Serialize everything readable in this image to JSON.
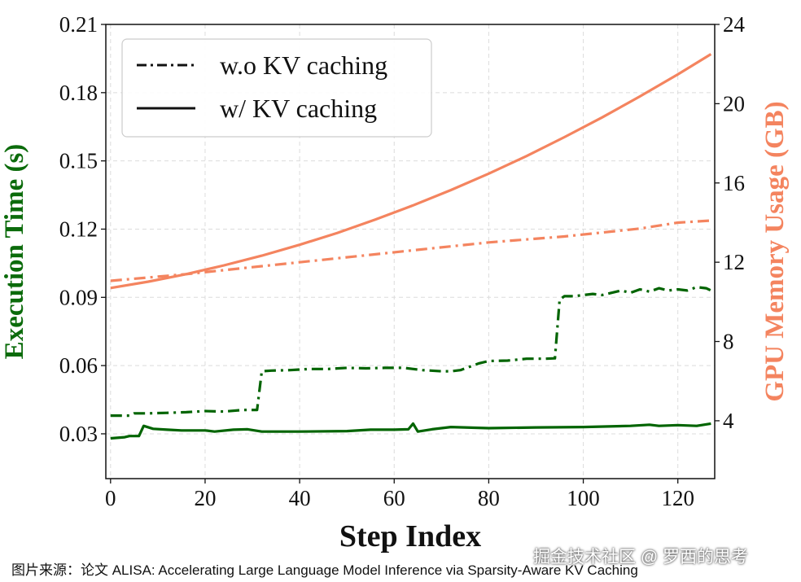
{
  "chart_data": {
    "type": "line",
    "xlabel": "Step Index",
    "ylabel_left": "Execution Time (s)",
    "ylabel_right": "GPU Memory Usage (GB)",
    "xlim": [
      -1,
      127.8
    ],
    "ylim_left": [
      0.0103,
      0.21
    ],
    "ylim_right": [
      1.08,
      24
    ],
    "xticks": [
      "0",
      "20",
      "40",
      "60",
      "80",
      "100",
      "120"
    ],
    "xtick_values": [
      0,
      20,
      40,
      60,
      80,
      100,
      120
    ],
    "yticks_left": [
      "0.03",
      "0.06",
      "0.09",
      "0.12",
      "0.15",
      "0.18",
      "0.21"
    ],
    "ytick_values_left": [
      0.03,
      0.06,
      0.09,
      0.12,
      0.15,
      0.18,
      0.21
    ],
    "yticks_right": [
      "4",
      "8",
      "12",
      "16",
      "20",
      "24"
    ],
    "ytick_values_right": [
      4,
      8,
      12,
      16,
      20,
      24
    ],
    "grid": true,
    "legend": {
      "placement": "top-left",
      "entries": [
        "w.o KV caching",
        "w/ KV caching"
      ]
    },
    "colors": {
      "time": "#006400",
      "memory": "#f4845f",
      "axis_left": "#0b6b0b",
      "axis_right": "#f4845f"
    },
    "series": [
      {
        "name": "Execution Time w.o KV caching",
        "axis": "left",
        "style": "dashdot",
        "color": "#006400",
        "x": [
          0,
          2,
          4,
          5,
          8,
          12,
          16,
          20,
          24,
          28,
          31,
          32,
          34,
          38,
          42,
          46,
          50,
          54,
          58,
          62,
          64,
          66,
          70,
          72,
          74,
          76,
          78,
          80,
          84,
          88,
          92,
          94,
          95,
          96,
          98,
          100,
          102,
          104,
          106,
          108,
          110,
          112,
          114,
          116,
          118,
          120,
          122,
          124,
          126,
          127
        ],
        "values": [
          0.038,
          0.038,
          0.038,
          0.039,
          0.039,
          0.0392,
          0.0395,
          0.04,
          0.0398,
          0.0405,
          0.0405,
          0.0575,
          0.0578,
          0.058,
          0.0585,
          0.0585,
          0.059,
          0.0588,
          0.059,
          0.059,
          0.0585,
          0.058,
          0.0575,
          0.0575,
          0.058,
          0.0595,
          0.061,
          0.062,
          0.0622,
          0.063,
          0.063,
          0.0632,
          0.089,
          0.0905,
          0.0905,
          0.091,
          0.0915,
          0.091,
          0.092,
          0.093,
          0.092,
          0.0935,
          0.0925,
          0.094,
          0.093,
          0.0935,
          0.093,
          0.0945,
          0.094,
          0.093
        ]
      },
      {
        "name": "Execution Time w/ KV caching",
        "axis": "left",
        "style": "solid",
        "color": "#006400",
        "x": [
          0,
          3,
          4,
          6,
          7,
          9,
          12,
          15,
          20,
          22,
          26,
          29,
          32,
          40,
          50,
          55,
          60,
          63,
          64,
          65,
          68,
          72,
          80,
          90,
          100,
          110,
          114,
          116,
          120,
          124,
          127
        ],
        "values": [
          0.028,
          0.0285,
          0.029,
          0.029,
          0.0335,
          0.0322,
          0.0318,
          0.0315,
          0.0315,
          0.031,
          0.0318,
          0.032,
          0.031,
          0.031,
          0.0312,
          0.0318,
          0.0318,
          0.032,
          0.0345,
          0.031,
          0.032,
          0.033,
          0.0325,
          0.0328,
          0.033,
          0.0335,
          0.034,
          0.0335,
          0.0338,
          0.0335,
          0.0345
        ]
      },
      {
        "name": "GPU Memory w.o KV caching",
        "axis": "right",
        "style": "dashdot",
        "color": "#f4845f",
        "x": [
          0,
          16,
          32,
          48,
          64,
          80,
          96,
          112,
          120,
          127
        ],
        "values": [
          11.06,
          11.4,
          11.8,
          12.2,
          12.6,
          13.0,
          13.3,
          13.7,
          14.0,
          14.1
        ]
      },
      {
        "name": "GPU Memory w/ KV caching",
        "axis": "right",
        "style": "solid",
        "color": "#f4845f",
        "x": [
          0,
          8,
          16,
          24,
          32,
          40,
          48,
          56,
          64,
          72,
          80,
          88,
          96,
          104,
          112,
          120,
          127
        ],
        "values": [
          10.7,
          11.02,
          11.4,
          11.84,
          12.33,
          12.88,
          13.48,
          14.15,
          14.87,
          15.64,
          16.47,
          17.36,
          18.31,
          19.31,
          20.37,
          21.48,
          22.5
        ]
      }
    ]
  },
  "caption": "图片来源：论文 ALISA: Accelerating Large Language Model Inference via Sparsity-Aware KV Caching",
  "watermark": "掘金技术社区 @ 罗西的思考"
}
